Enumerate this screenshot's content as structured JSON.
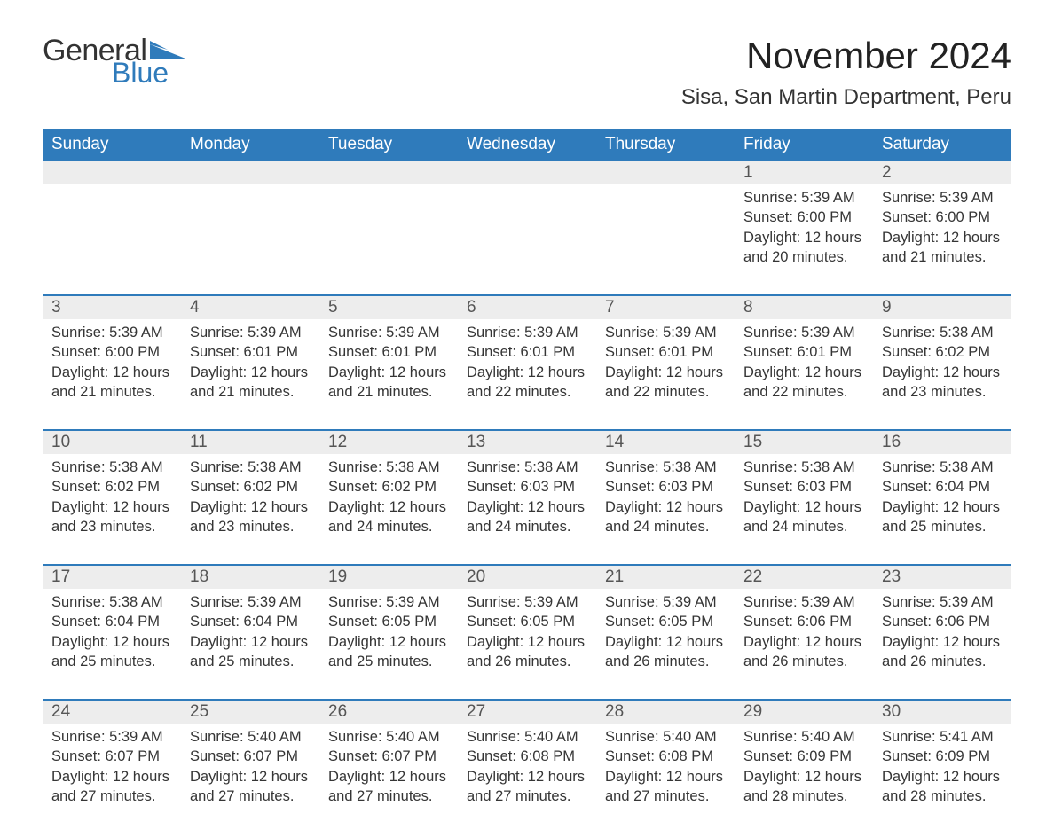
{
  "logo": {
    "text1": "General",
    "text2": "Blue",
    "flag_color": "#2f7bbb"
  },
  "title": "November 2024",
  "location": "Sisa, San Martin Department, Peru",
  "colors": {
    "header_blue": "#2f7bbb",
    "daynum_bg": "#ededed",
    "text": "#333333",
    "rule": "#2f7bbb"
  },
  "layout": {
    "columns": 7,
    "rows": 5
  },
  "weekdays": [
    "Sunday",
    "Monday",
    "Tuesday",
    "Wednesday",
    "Thursday",
    "Friday",
    "Saturday"
  ],
  "weeks": [
    {
      "days": [
        {
          "num": "",
          "sunrise": "",
          "sunset": "",
          "daylight1": "",
          "daylight2": ""
        },
        {
          "num": "",
          "sunrise": "",
          "sunset": "",
          "daylight1": "",
          "daylight2": ""
        },
        {
          "num": "",
          "sunrise": "",
          "sunset": "",
          "daylight1": "",
          "daylight2": ""
        },
        {
          "num": "",
          "sunrise": "",
          "sunset": "",
          "daylight1": "",
          "daylight2": ""
        },
        {
          "num": "",
          "sunrise": "",
          "sunset": "",
          "daylight1": "",
          "daylight2": ""
        },
        {
          "num": "1",
          "sunrise": "Sunrise: 5:39 AM",
          "sunset": "Sunset: 6:00 PM",
          "daylight1": "Daylight: 12 hours",
          "daylight2": "and 20 minutes."
        },
        {
          "num": "2",
          "sunrise": "Sunrise: 5:39 AM",
          "sunset": "Sunset: 6:00 PM",
          "daylight1": "Daylight: 12 hours",
          "daylight2": "and 21 minutes."
        }
      ]
    },
    {
      "days": [
        {
          "num": "3",
          "sunrise": "Sunrise: 5:39 AM",
          "sunset": "Sunset: 6:00 PM",
          "daylight1": "Daylight: 12 hours",
          "daylight2": "and 21 minutes."
        },
        {
          "num": "4",
          "sunrise": "Sunrise: 5:39 AM",
          "sunset": "Sunset: 6:01 PM",
          "daylight1": "Daylight: 12 hours",
          "daylight2": "and 21 minutes."
        },
        {
          "num": "5",
          "sunrise": "Sunrise: 5:39 AM",
          "sunset": "Sunset: 6:01 PM",
          "daylight1": "Daylight: 12 hours",
          "daylight2": "and 21 minutes."
        },
        {
          "num": "6",
          "sunrise": "Sunrise: 5:39 AM",
          "sunset": "Sunset: 6:01 PM",
          "daylight1": "Daylight: 12 hours",
          "daylight2": "and 22 minutes."
        },
        {
          "num": "7",
          "sunrise": "Sunrise: 5:39 AM",
          "sunset": "Sunset: 6:01 PM",
          "daylight1": "Daylight: 12 hours",
          "daylight2": "and 22 minutes."
        },
        {
          "num": "8",
          "sunrise": "Sunrise: 5:39 AM",
          "sunset": "Sunset: 6:01 PM",
          "daylight1": "Daylight: 12 hours",
          "daylight2": "and 22 minutes."
        },
        {
          "num": "9",
          "sunrise": "Sunrise: 5:38 AM",
          "sunset": "Sunset: 6:02 PM",
          "daylight1": "Daylight: 12 hours",
          "daylight2": "and 23 minutes."
        }
      ]
    },
    {
      "days": [
        {
          "num": "10",
          "sunrise": "Sunrise: 5:38 AM",
          "sunset": "Sunset: 6:02 PM",
          "daylight1": "Daylight: 12 hours",
          "daylight2": "and 23 minutes."
        },
        {
          "num": "11",
          "sunrise": "Sunrise: 5:38 AM",
          "sunset": "Sunset: 6:02 PM",
          "daylight1": "Daylight: 12 hours",
          "daylight2": "and 23 minutes."
        },
        {
          "num": "12",
          "sunrise": "Sunrise: 5:38 AM",
          "sunset": "Sunset: 6:02 PM",
          "daylight1": "Daylight: 12 hours",
          "daylight2": "and 24 minutes."
        },
        {
          "num": "13",
          "sunrise": "Sunrise: 5:38 AM",
          "sunset": "Sunset: 6:03 PM",
          "daylight1": "Daylight: 12 hours",
          "daylight2": "and 24 minutes."
        },
        {
          "num": "14",
          "sunrise": "Sunrise: 5:38 AM",
          "sunset": "Sunset: 6:03 PM",
          "daylight1": "Daylight: 12 hours",
          "daylight2": "and 24 minutes."
        },
        {
          "num": "15",
          "sunrise": "Sunrise: 5:38 AM",
          "sunset": "Sunset: 6:03 PM",
          "daylight1": "Daylight: 12 hours",
          "daylight2": "and 24 minutes."
        },
        {
          "num": "16",
          "sunrise": "Sunrise: 5:38 AM",
          "sunset": "Sunset: 6:04 PM",
          "daylight1": "Daylight: 12 hours",
          "daylight2": "and 25 minutes."
        }
      ]
    },
    {
      "days": [
        {
          "num": "17",
          "sunrise": "Sunrise: 5:38 AM",
          "sunset": "Sunset: 6:04 PM",
          "daylight1": "Daylight: 12 hours",
          "daylight2": "and 25 minutes."
        },
        {
          "num": "18",
          "sunrise": "Sunrise: 5:39 AM",
          "sunset": "Sunset: 6:04 PM",
          "daylight1": "Daylight: 12 hours",
          "daylight2": "and 25 minutes."
        },
        {
          "num": "19",
          "sunrise": "Sunrise: 5:39 AM",
          "sunset": "Sunset: 6:05 PM",
          "daylight1": "Daylight: 12 hours",
          "daylight2": "and 25 minutes."
        },
        {
          "num": "20",
          "sunrise": "Sunrise: 5:39 AM",
          "sunset": "Sunset: 6:05 PM",
          "daylight1": "Daylight: 12 hours",
          "daylight2": "and 26 minutes."
        },
        {
          "num": "21",
          "sunrise": "Sunrise: 5:39 AM",
          "sunset": "Sunset: 6:05 PM",
          "daylight1": "Daylight: 12 hours",
          "daylight2": "and 26 minutes."
        },
        {
          "num": "22",
          "sunrise": "Sunrise: 5:39 AM",
          "sunset": "Sunset: 6:06 PM",
          "daylight1": "Daylight: 12 hours",
          "daylight2": "and 26 minutes."
        },
        {
          "num": "23",
          "sunrise": "Sunrise: 5:39 AM",
          "sunset": "Sunset: 6:06 PM",
          "daylight1": "Daylight: 12 hours",
          "daylight2": "and 26 minutes."
        }
      ]
    },
    {
      "days": [
        {
          "num": "24",
          "sunrise": "Sunrise: 5:39 AM",
          "sunset": "Sunset: 6:07 PM",
          "daylight1": "Daylight: 12 hours",
          "daylight2": "and 27 minutes."
        },
        {
          "num": "25",
          "sunrise": "Sunrise: 5:40 AM",
          "sunset": "Sunset: 6:07 PM",
          "daylight1": "Daylight: 12 hours",
          "daylight2": "and 27 minutes."
        },
        {
          "num": "26",
          "sunrise": "Sunrise: 5:40 AM",
          "sunset": "Sunset: 6:07 PM",
          "daylight1": "Daylight: 12 hours",
          "daylight2": "and 27 minutes."
        },
        {
          "num": "27",
          "sunrise": "Sunrise: 5:40 AM",
          "sunset": "Sunset: 6:08 PM",
          "daylight1": "Daylight: 12 hours",
          "daylight2": "and 27 minutes."
        },
        {
          "num": "28",
          "sunrise": "Sunrise: 5:40 AM",
          "sunset": "Sunset: 6:08 PM",
          "daylight1": "Daylight: 12 hours",
          "daylight2": "and 27 minutes."
        },
        {
          "num": "29",
          "sunrise": "Sunrise: 5:40 AM",
          "sunset": "Sunset: 6:09 PM",
          "daylight1": "Daylight: 12 hours",
          "daylight2": "and 28 minutes."
        },
        {
          "num": "30",
          "sunrise": "Sunrise: 5:41 AM",
          "sunset": "Sunset: 6:09 PM",
          "daylight1": "Daylight: 12 hours",
          "daylight2": "and 28 minutes."
        }
      ]
    }
  ]
}
